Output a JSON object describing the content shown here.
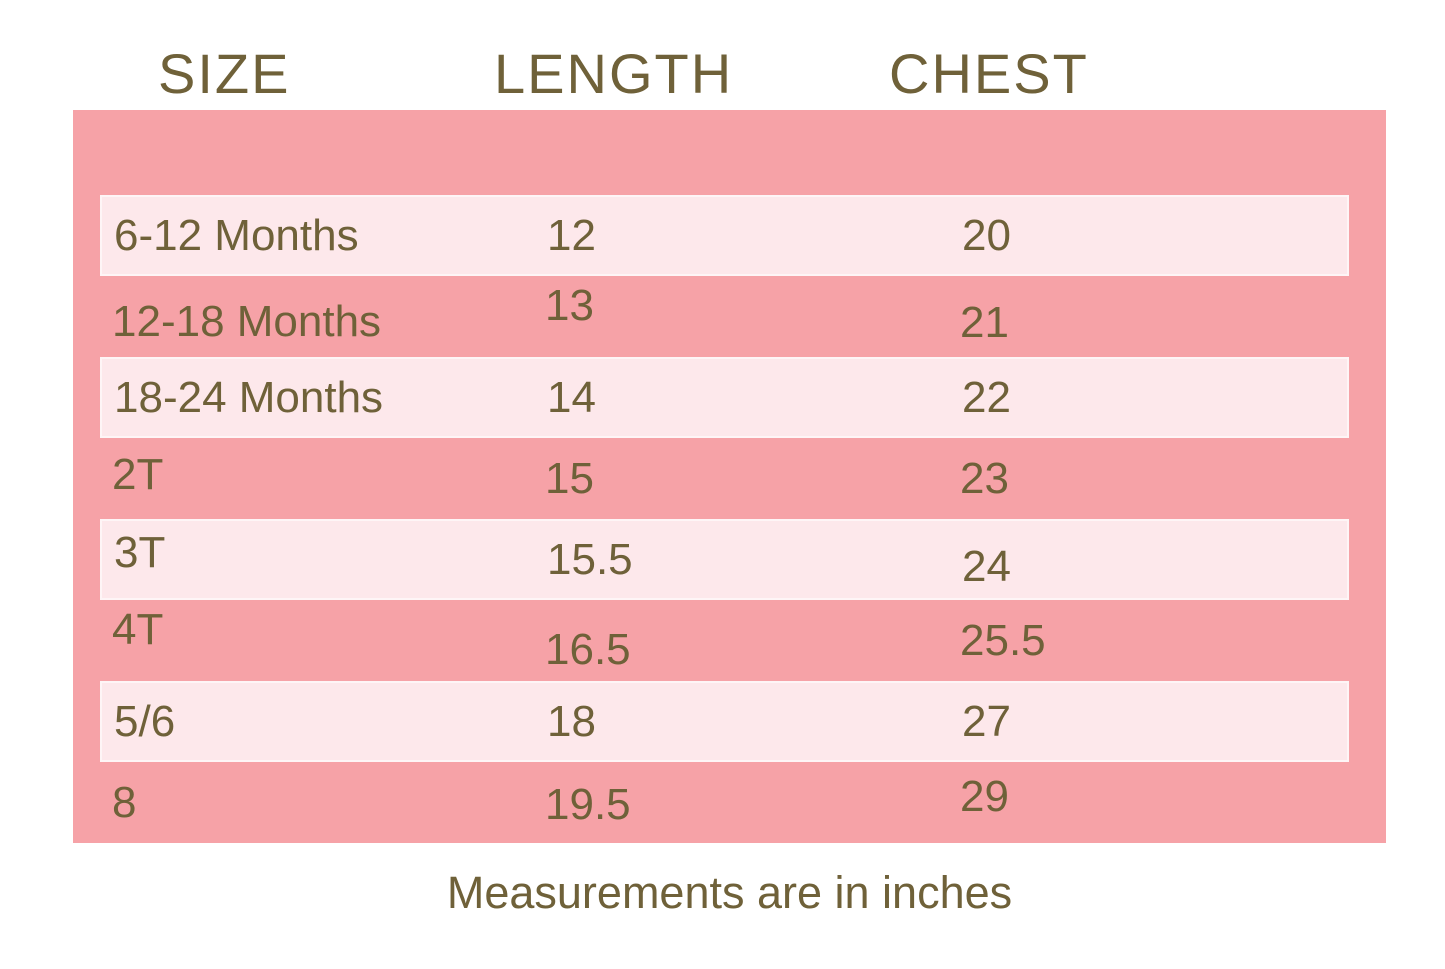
{
  "chart_data": {
    "type": "table",
    "columns": [
      "SIZE",
      "LENGTH",
      "CHEST"
    ],
    "rows": [
      {
        "size": "6-12 Months",
        "length": "12",
        "chest": "20"
      },
      {
        "size": "12-18 Months",
        "length": "13",
        "chest": "21"
      },
      {
        "size": "18-24 Months",
        "length": "14",
        "chest": "22"
      },
      {
        "size": "2T",
        "length": "15",
        "chest": "23"
      },
      {
        "size": "3T",
        "length": "15.5",
        "chest": "24"
      },
      {
        "size": "4T",
        "length": "16.5",
        "chest": "25.5"
      },
      {
        "size": "5/6",
        "length": "18",
        "chest": "27"
      },
      {
        "size": "8",
        "length": "19.5",
        "chest": "29"
      }
    ],
    "footnote": "Measurements are in inches",
    "layout_hints": {
      "row_striping": "alternating light band on odd rows",
      "alignment": "left-aligned columns"
    }
  },
  "colors": {
    "background": "#ffffff",
    "panel_pink": "#f6a2a7",
    "row_band_pink": "#fde8eb",
    "text_olive": "#6f6139"
  }
}
